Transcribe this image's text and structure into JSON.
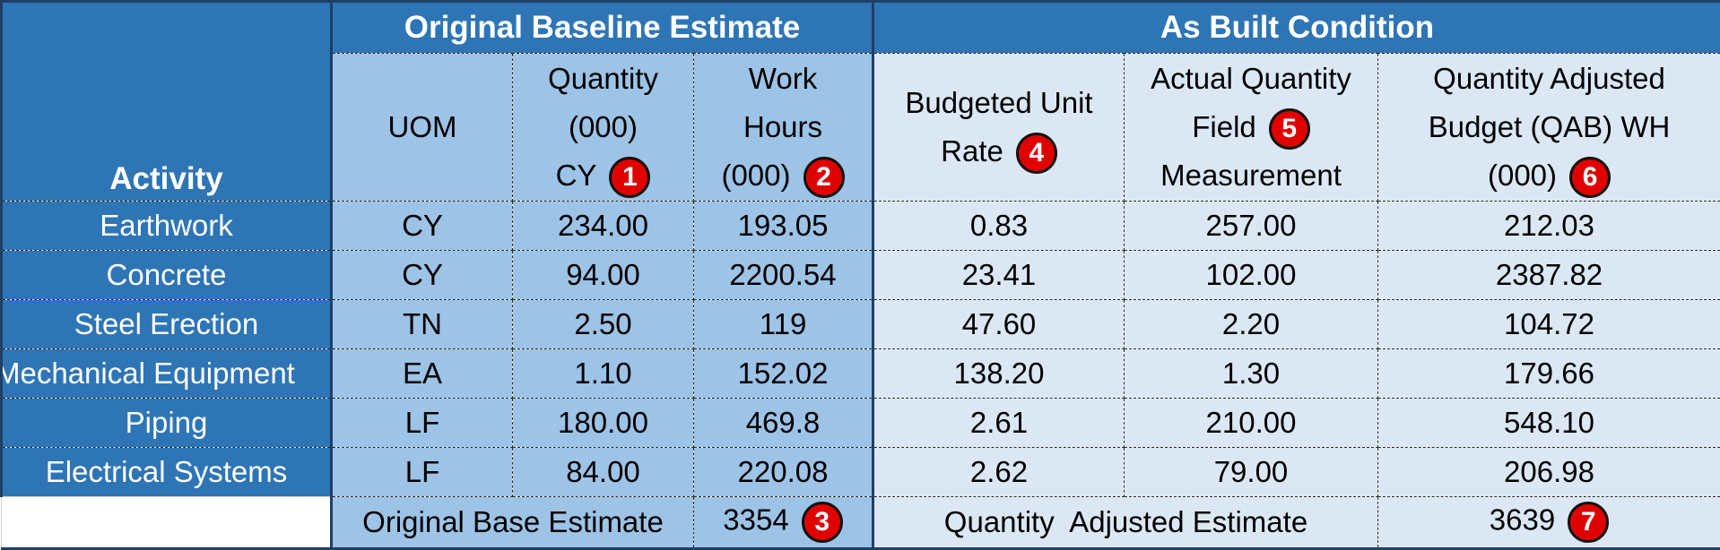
{
  "groups": {
    "original": "Original Baseline Estimate",
    "as_built": "As Built Condition"
  },
  "columns": {
    "activity": "Activity",
    "uom": "UOM",
    "quantity": [
      "Quantity",
      "(000)",
      "CY"
    ],
    "work_hours": [
      "Work",
      "Hours",
      "(000)"
    ],
    "budgeted_unit_rate": [
      "Budgeted Unit",
      "Rate"
    ],
    "actual_quantity": [
      "Actual Quantity",
      "Field",
      "Measurement"
    ],
    "qab": [
      "Quantity Adjusted",
      "Budget (QAB) WH",
      "(000)"
    ]
  },
  "badges": [
    "1",
    "2",
    "3",
    "4",
    "5",
    "6",
    "7"
  ],
  "rows": [
    {
      "activity": "Earthwork",
      "uom": "CY",
      "quantity": "234.00",
      "work_hours": "193.05",
      "unit_rate": "0.83",
      "actual_qty": "257.00",
      "qab": "212.03"
    },
    {
      "activity": "Concrete",
      "uom": "CY",
      "quantity": "94.00",
      "work_hours": "2200.54",
      "unit_rate": "23.41",
      "actual_qty": "102.00",
      "qab": "2387.82"
    },
    {
      "activity": "Steel Erection",
      "uom": "TN",
      "quantity": "2.50",
      "work_hours": "119",
      "unit_rate": "47.60",
      "actual_qty": "2.20",
      "qab": "104.72"
    },
    {
      "activity": "Mechanical Equipment",
      "uom": "EA",
      "quantity": "1.10",
      "work_hours": "152.02",
      "unit_rate": "138.20",
      "actual_qty": "1.30",
      "qab": "179.66"
    },
    {
      "activity": "Piping",
      "uom": "LF",
      "quantity": "180.00",
      "work_hours": "469.8",
      "unit_rate": "2.61",
      "actual_qty": "210.00",
      "qab": "548.10"
    },
    {
      "activity": "Electrical Systems",
      "uom": "LF",
      "quantity": "84.00",
      "work_hours": "220.08",
      "unit_rate": "2.62",
      "actual_qty": "79.00",
      "qab": "206.98"
    }
  ],
  "footer": {
    "original_label": "Original Base Estimate",
    "original_total": "3354",
    "adjusted_label": "Quantity  Adjusted Estimate",
    "adjusted_total": "3639"
  },
  "colors": {
    "header_blue": "#2e75b6",
    "original_fill": "#9dc3e6",
    "as_built_fill": "#dbe8f4",
    "badge_red": "#e10000"
  }
}
